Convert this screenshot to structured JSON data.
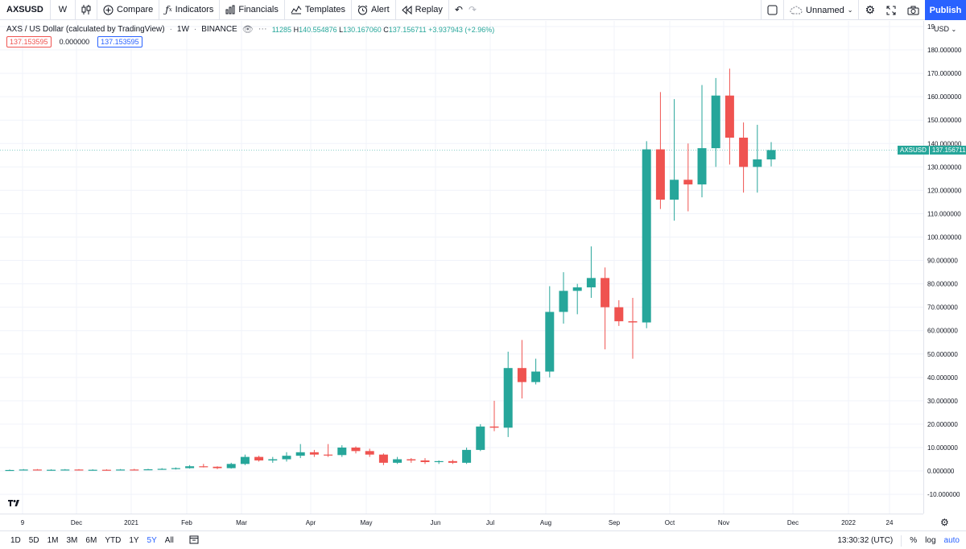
{
  "toolbar": {
    "symbol": "AXSUSD",
    "interval": "W",
    "compare": "Compare",
    "indicators": "Indicators",
    "financials": "Financials",
    "templates": "Templates",
    "alert": "Alert",
    "replay": "Replay",
    "layout_name": "Unnamed",
    "publish": "Publish",
    "icons": {
      "bar_style": "candles-icon",
      "compare": "plus-circle-icon",
      "indicators": "fx-icon",
      "financials": "bar-chart-icon",
      "templates": "templates-icon",
      "alert": "alarm-clock-icon",
      "replay": "rewind-icon",
      "undo": "undo-icon",
      "redo": "redo-icon",
      "fullscreen_box": "square-icon",
      "cloud": "cloud-icon",
      "settings": "gear-icon",
      "fullscreen": "expand-icon",
      "snapshot": "camera-icon"
    }
  },
  "legend": {
    "title": "AXS / US Dollar (calculated by TradingView)",
    "interval": "1W",
    "exchange": "BINANCE",
    "ohlc_text": "11285",
    "high_label": "H",
    "high": "140.554876",
    "low_label": "L",
    "low": "130.167060",
    "close_label": "C",
    "close": "137.156711",
    "change": "+3.937943 (+2.96%)"
  },
  "price_boxes": {
    "red": "137.153595",
    "plain": "0.000000",
    "blue": "137.153595"
  },
  "price_scale": {
    "currency": "USD",
    "current_symbol": "AXSUSD",
    "current_value": "137.156711",
    "ticks": [
      "190.000000",
      "180.000000",
      "170.000000",
      "160.000000",
      "150.000000",
      "140.000000",
      "130.000000",
      "120.000000",
      "110.000000",
      "100.000000",
      "90.000000",
      "80.000000",
      "70.000000",
      "60.000000",
      "50.000000",
      "40.000000",
      "30.000000",
      "20.000000",
      "10.000000",
      "0.000000",
      "-10.000000"
    ]
  },
  "colors": {
    "up": "#26a69a",
    "down": "#ef5350",
    "accent": "#2962ff",
    "grid": "#f0f3fa"
  },
  "chart_data": {
    "type": "candlestick",
    "interval": "1W",
    "ylim": [
      -12,
      190
    ],
    "current_price": 137.156711,
    "x_ticks": [
      "9",
      "Dec",
      "2021",
      "Feb",
      "Mar",
      "Apr",
      "May",
      "Jun",
      "Jul",
      "Aug",
      "Sep",
      "Oct",
      "Nov",
      "Dec",
      "2022",
      "24"
    ],
    "candles": [
      {
        "o": 0.3,
        "h": 0.6,
        "l": 0.2,
        "c": 0.4
      },
      {
        "o": 0.4,
        "h": 0.8,
        "l": 0.3,
        "c": 0.6
      },
      {
        "o": 0.6,
        "h": 0.8,
        "l": 0.3,
        "c": 0.4
      },
      {
        "o": 0.4,
        "h": 0.7,
        "l": 0.3,
        "c": 0.5
      },
      {
        "o": 0.5,
        "h": 0.8,
        "l": 0.4,
        "c": 0.6
      },
      {
        "o": 0.6,
        "h": 0.8,
        "l": 0.3,
        "c": 0.4
      },
      {
        "o": 0.4,
        "h": 0.7,
        "l": 0.3,
        "c": 0.5
      },
      {
        "o": 0.5,
        "h": 0.7,
        "l": 0.3,
        "c": 0.4
      },
      {
        "o": 0.4,
        "h": 0.8,
        "l": 0.3,
        "c": 0.6
      },
      {
        "o": 0.6,
        "h": 0.9,
        "l": 0.4,
        "c": 0.5
      },
      {
        "o": 0.5,
        "h": 0.9,
        "l": 0.4,
        "c": 0.7
      },
      {
        "o": 0.7,
        "h": 1.2,
        "l": 0.5,
        "c": 0.9
      },
      {
        "o": 0.9,
        "h": 1.5,
        "l": 0.6,
        "c": 1.2
      },
      {
        "o": 1.2,
        "h": 2.5,
        "l": 1.0,
        "c": 2.0
      },
      {
        "o": 2.0,
        "h": 3.0,
        "l": 1.5,
        "c": 1.8
      },
      {
        "o": 1.8,
        "h": 2.0,
        "l": 0.8,
        "c": 1.2
      },
      {
        "o": 1.2,
        "h": 3.5,
        "l": 1.0,
        "c": 3.0
      },
      {
        "o": 3.0,
        "h": 7.0,
        "l": 2.5,
        "c": 6.0
      },
      {
        "o": 6.0,
        "h": 6.5,
        "l": 4.0,
        "c": 4.5
      },
      {
        "o": 4.5,
        "h": 6.0,
        "l": 3.5,
        "c": 5.0
      },
      {
        "o": 5.0,
        "h": 8.0,
        "l": 4.0,
        "c": 6.5
      },
      {
        "o": 6.5,
        "h": 11.5,
        "l": 5.5,
        "c": 8.0
      },
      {
        "o": 8.0,
        "h": 9.0,
        "l": 6.0,
        "c": 7.0
      },
      {
        "o": 7.0,
        "h": 11.5,
        "l": 6.0,
        "c": 6.8
      },
      {
        "o": 6.8,
        "h": 11.0,
        "l": 6.0,
        "c": 10.0
      },
      {
        "o": 10.0,
        "h": 10.5,
        "l": 7.5,
        "c": 8.5
      },
      {
        "o": 8.5,
        "h": 9.5,
        "l": 6.0,
        "c": 7.0
      },
      {
        "o": 7.0,
        "h": 7.5,
        "l": 2.5,
        "c": 3.5
      },
      {
        "o": 3.5,
        "h": 6.0,
        "l": 3.0,
        "c": 5.0
      },
      {
        "o": 5.0,
        "h": 5.5,
        "l": 3.5,
        "c": 4.5
      },
      {
        "o": 4.5,
        "h": 5.5,
        "l": 3.0,
        "c": 3.8
      },
      {
        "o": 3.8,
        "h": 4.5,
        "l": 3.0,
        "c": 4.2
      },
      {
        "o": 4.2,
        "h": 4.8,
        "l": 3.0,
        "c": 3.5
      },
      {
        "o": 3.5,
        "h": 10.0,
        "l": 3.0,
        "c": 9.0
      },
      {
        "o": 9.0,
        "h": 20.0,
        "l": 8.5,
        "c": 19.0
      },
      {
        "o": 19.0,
        "h": 30.0,
        "l": 17.0,
        "c": 18.5
      },
      {
        "o": 18.5,
        "h": 51.0,
        "l": 14.5,
        "c": 44.0
      },
      {
        "o": 44.0,
        "h": 56.0,
        "l": 31.0,
        "c": 38.0
      },
      {
        "o": 38.0,
        "h": 48.0,
        "l": 37.0,
        "c": 42.5
      },
      {
        "o": 42.5,
        "h": 79.0,
        "l": 40.0,
        "c": 68.0
      },
      {
        "o": 68.0,
        "h": 85.0,
        "l": 63.0,
        "c": 77.0
      },
      {
        "o": 77.0,
        "h": 80.0,
        "l": 67.0,
        "c": 78.5
      },
      {
        "o": 78.5,
        "h": 96.0,
        "l": 74.0,
        "c": 82.5
      },
      {
        "o": 82.5,
        "h": 87.0,
        "l": 52.0,
        "c": 70.0
      },
      {
        "o": 70.0,
        "h": 73.0,
        "l": 62.0,
        "c": 64.0
      },
      {
        "o": 64.0,
        "h": 74.0,
        "l": 48.0,
        "c": 63.5
      },
      {
        "o": 63.5,
        "h": 141.0,
        "l": 61.0,
        "c": 137.5
      },
      {
        "o": 137.5,
        "h": 162.0,
        "l": 112.0,
        "c": 116.0
      },
      {
        "o": 116.0,
        "h": 159.0,
        "l": 107.0,
        "c": 124.5
      },
      {
        "o": 124.5,
        "h": 140.0,
        "l": 111.0,
        "c": 122.5
      },
      {
        "o": 122.5,
        "h": 165.0,
        "l": 117.0,
        "c": 138.0
      },
      {
        "o": 138.0,
        "h": 168.0,
        "l": 130.0,
        "c": 160.5
      },
      {
        "o": 160.5,
        "h": 172.0,
        "l": 131.0,
        "c": 142.5
      },
      {
        "o": 142.5,
        "h": 149.0,
        "l": 119.0,
        "c": 130.0
      },
      {
        "o": 130.0,
        "h": 148.0,
        "l": 119.0,
        "c": 133.2
      },
      {
        "o": 133.2,
        "h": 140.6,
        "l": 130.2,
        "c": 137.2
      }
    ]
  },
  "bottom": {
    "ranges": [
      "1D",
      "5D",
      "1M",
      "3M",
      "6M",
      "YTD",
      "1Y",
      "5Y",
      "All"
    ],
    "active_range": "5Y",
    "time": "13:30:32 (UTC)",
    "percent": "%",
    "log": "log",
    "auto": "auto"
  }
}
